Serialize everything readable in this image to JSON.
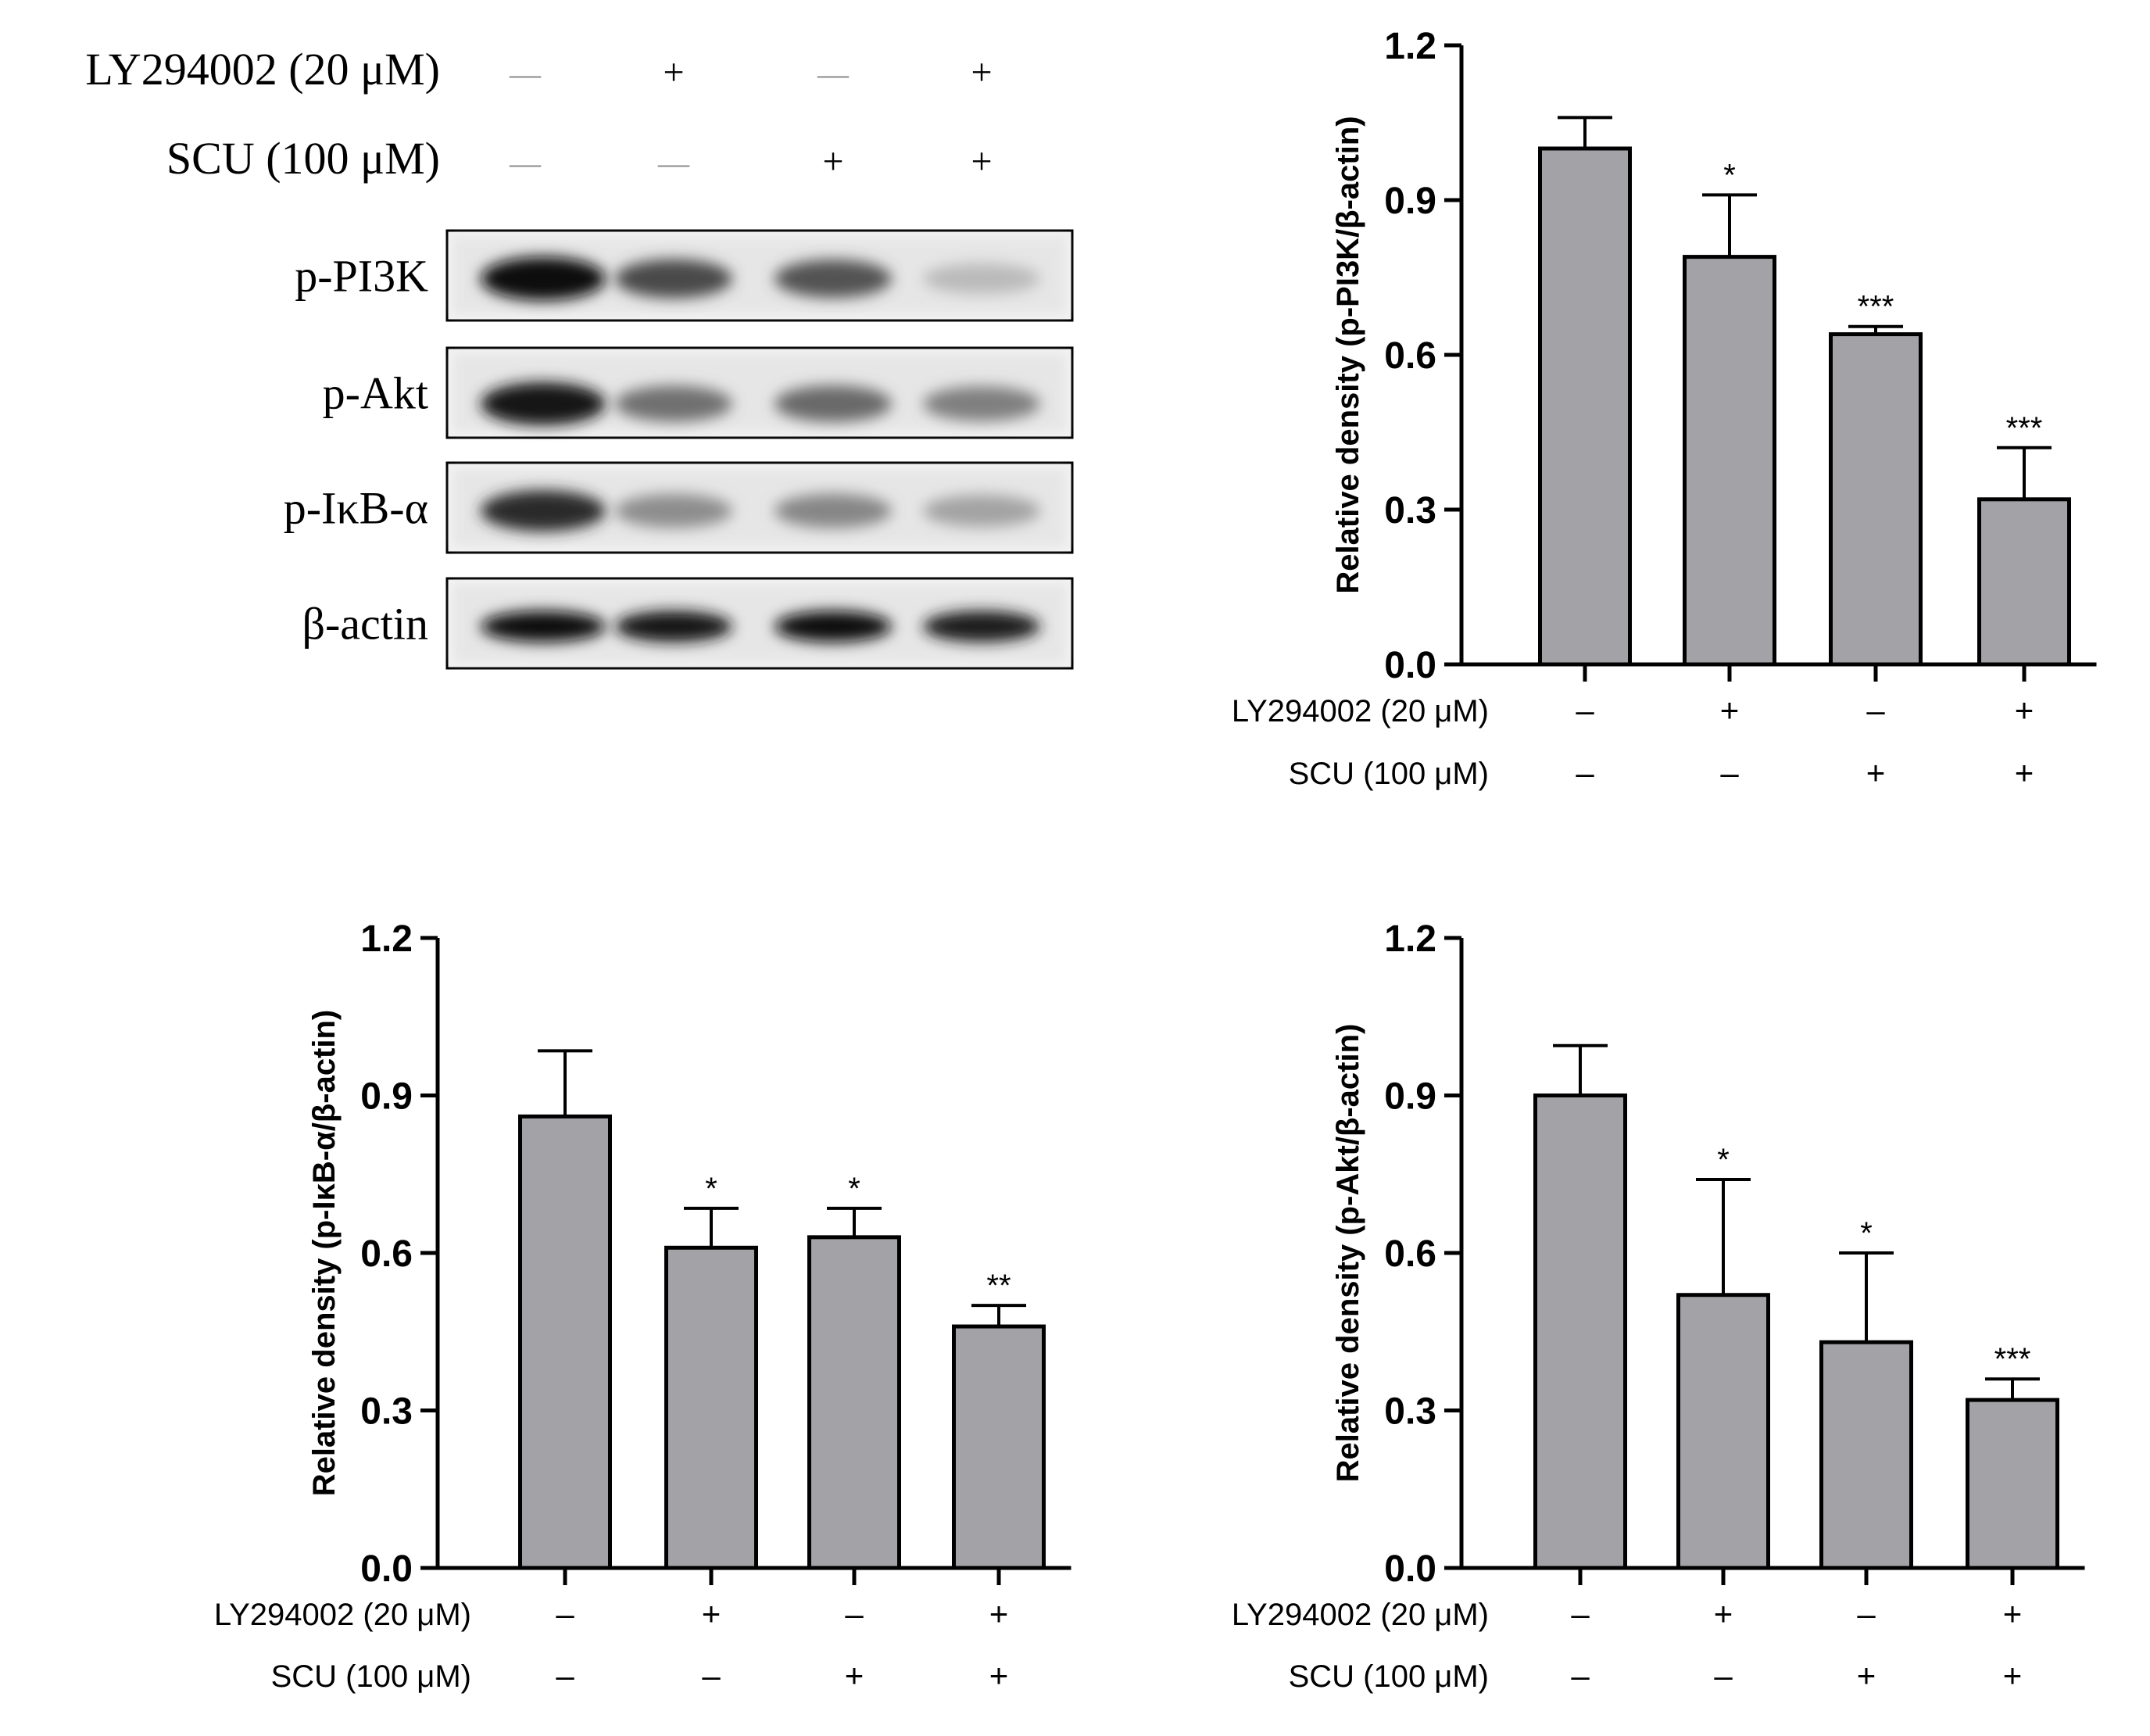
{
  "western_blot": {
    "condition_rows": [
      {
        "label": "LY294002 (20 μM)",
        "signs": [
          "—",
          "+",
          "—",
          "+"
        ]
      },
      {
        "label": "SCU (100 μM)",
        "signs": [
          "—",
          "—",
          "+",
          "+"
        ]
      }
    ],
    "bands": [
      {
        "label": "p-PI3K",
        "intensity": [
          1.0,
          0.72,
          0.68,
          0.22
        ]
      },
      {
        "label": "p-Akt",
        "intensity": [
          0.95,
          0.55,
          0.58,
          0.48
        ]
      },
      {
        "label": "p-IκB-α",
        "intensity": [
          0.85,
          0.42,
          0.45,
          0.32
        ]
      },
      {
        "label": "β-actin",
        "intensity": [
          1.0,
          0.95,
          0.98,
          0.92
        ]
      }
    ]
  },
  "colors": {
    "bar_fill": "#a3a3a7",
    "ink": "#000000",
    "blot_background": "#f2f2f2"
  },
  "chart_data": [
    {
      "type": "bar",
      "panel": "top-right",
      "categories": [
        "1",
        "2",
        "3",
        "4"
      ],
      "values": [
        1.0,
        0.79,
        0.64,
        0.32
      ],
      "errors": [
        0.06,
        0.12,
        0.015,
        0.1
      ],
      "significance": [
        "",
        "*",
        "***",
        "***"
      ],
      "ylabel": "Relative density (p-PI3K/β-actin)",
      "ylim": [
        0,
        1.2
      ],
      "yticks": [
        "0.0",
        "0.3",
        "0.6",
        "0.9",
        "1.2"
      ],
      "conditions": [
        {
          "label": "LY294002 (20 μM)",
          "signs": [
            "–",
            "+",
            "–",
            "+"
          ]
        },
        {
          "label": "SCU (100 μM)",
          "signs": [
            "–",
            "–",
            "+",
            "+"
          ]
        }
      ]
    },
    {
      "type": "bar",
      "panel": "bottom-left",
      "categories": [
        "1",
        "2",
        "3",
        "4"
      ],
      "values": [
        0.86,
        0.61,
        0.63,
        0.46
      ],
      "errors": [
        0.125,
        0.075,
        0.055,
        0.04
      ],
      "significance": [
        "",
        "*",
        "*",
        "**"
      ],
      "ylabel": "Relative density (p-IκB-α/β-actin)",
      "ylim": [
        0,
        1.2
      ],
      "yticks": [
        "0.0",
        "0.3",
        "0.6",
        "0.9",
        "1.2"
      ],
      "conditions": [
        {
          "label": "LY294002 (20 μM)",
          "signs": [
            "–",
            "+",
            "–",
            "+"
          ]
        },
        {
          "label": "SCU (100 μM)",
          "signs": [
            "–",
            "–",
            "+",
            "+"
          ]
        }
      ]
    },
    {
      "type": "bar",
      "panel": "bottom-right",
      "categories": [
        "1",
        "2",
        "3",
        "4"
      ],
      "values": [
        0.9,
        0.52,
        0.43,
        0.32
      ],
      "errors": [
        0.095,
        0.22,
        0.17,
        0.04
      ],
      "significance": [
        "",
        "*",
        "*",
        "***"
      ],
      "ylabel": "Relative density (p-Akt/β-actin)",
      "ylim": [
        0,
        1.2
      ],
      "yticks": [
        "0.0",
        "0.3",
        "0.6",
        "0.9",
        "1.2"
      ],
      "conditions": [
        {
          "label": "LY294002 (20 μM)",
          "signs": [
            "–",
            "+",
            "–",
            "+"
          ]
        },
        {
          "label": "SCU (100 μM)",
          "signs": [
            "–",
            "–",
            "+",
            "+"
          ]
        }
      ]
    }
  ]
}
